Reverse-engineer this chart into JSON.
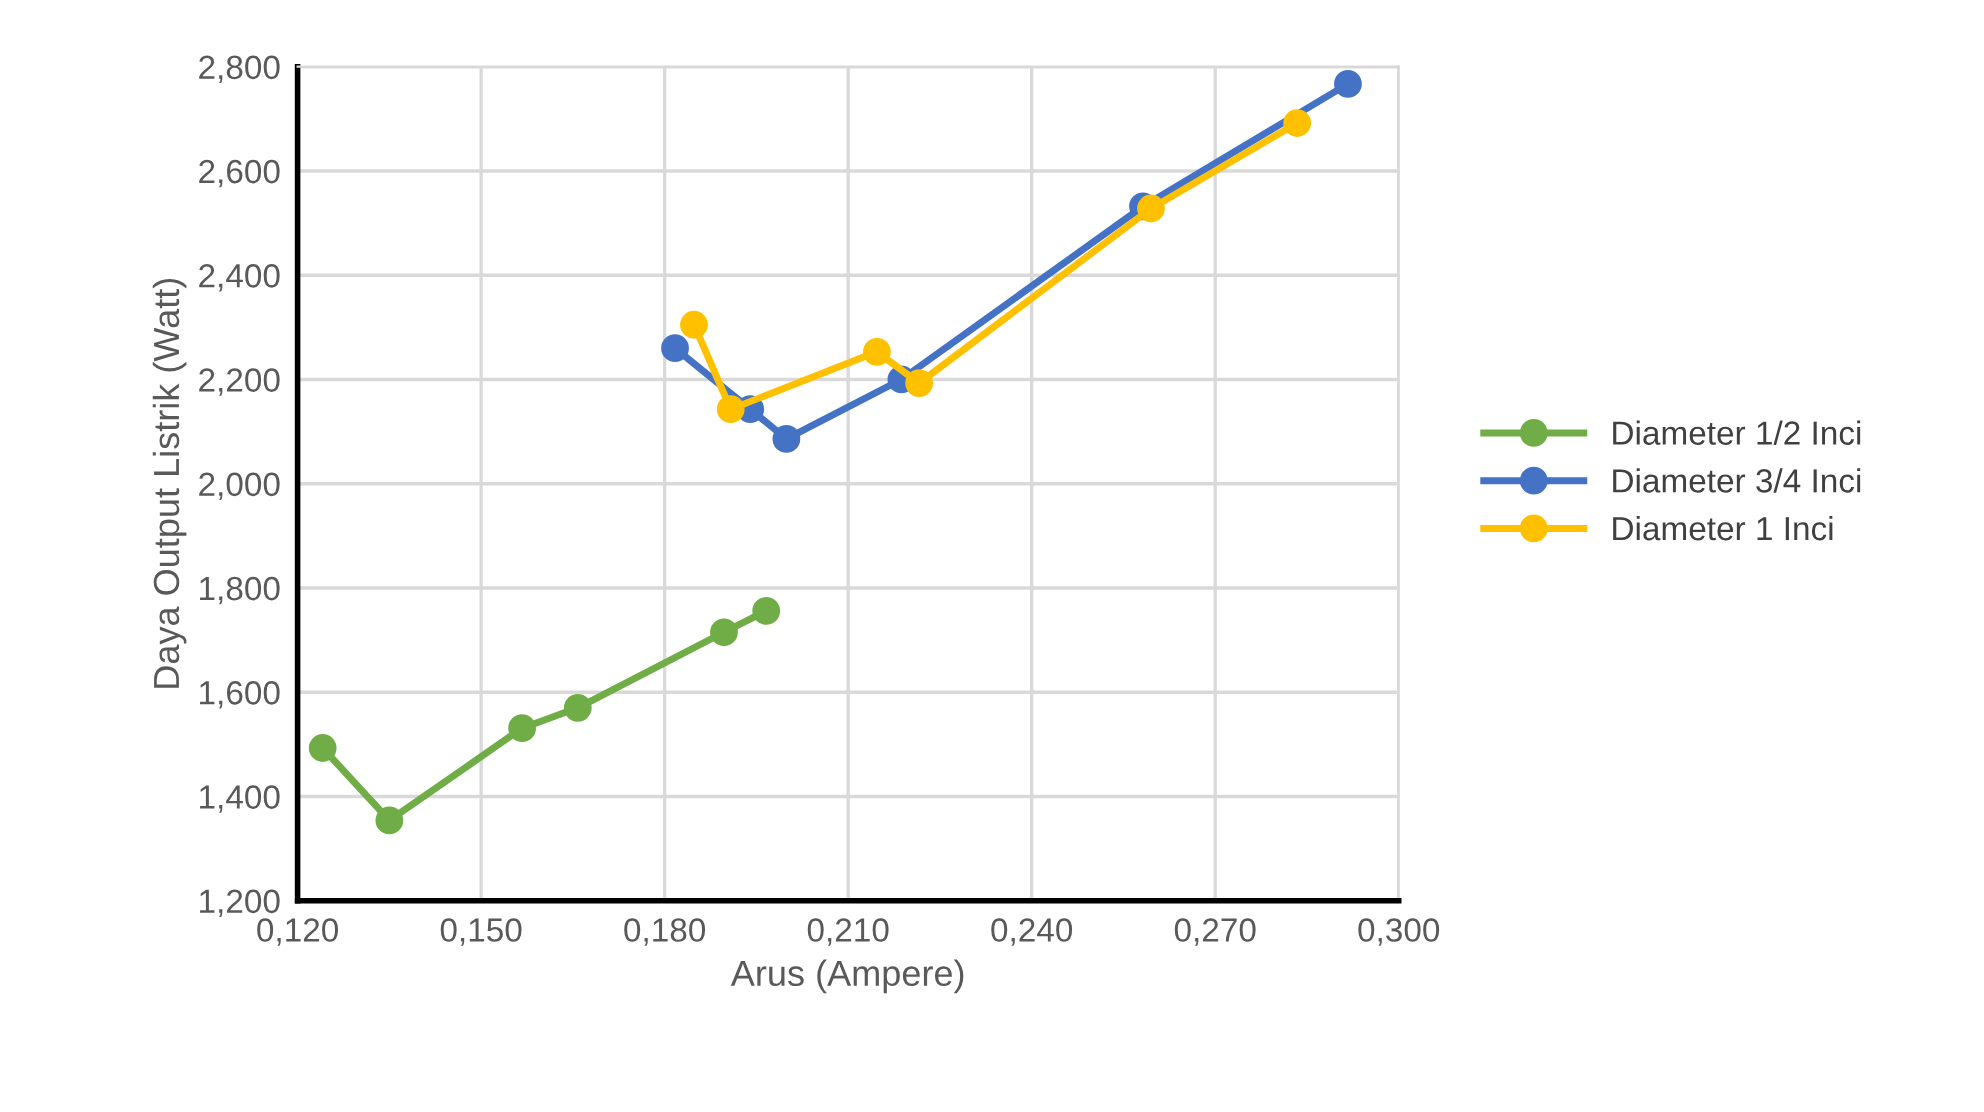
{
  "chart_data": {
    "type": "line",
    "xlabel": "Arus (Ampere)",
    "ylabel": "Daya Output Listrik (Watt)",
    "xlim": [
      0.12,
      0.3
    ],
    "xticks": [
      {
        "value": 0.12,
        "label": "0,120"
      },
      {
        "value": 0.15,
        "label": "0,150"
      },
      {
        "value": 0.18,
        "label": "0,180"
      },
      {
        "value": 0.21,
        "label": "0,210"
      },
      {
        "value": 0.24,
        "label": "0,240"
      },
      {
        "value": 0.27,
        "label": "0,270"
      },
      {
        "value": 0.3,
        "label": "0,300"
      }
    ],
    "ylim": [
      1.2,
      2.8
    ],
    "yticks": [
      {
        "value": 1.2,
        "label": "1,200"
      },
      {
        "value": 1.4,
        "label": "1,400"
      },
      {
        "value": 1.6,
        "label": "1,600"
      },
      {
        "value": 1.8,
        "label": "1,800"
      },
      {
        "value": 2.0,
        "label": "2,000"
      },
      {
        "value": 2.2,
        "label": "2,200"
      },
      {
        "value": 2.4,
        "label": "2,400"
      },
      {
        "value": 2.6,
        "label": "2,600"
      },
      {
        "value": 2.8,
        "label": "2,800"
      }
    ],
    "grid": true,
    "legend": "right",
    "marker": "circle",
    "line_style": "solid",
    "series": [
      {
        "name": "Diameter 1/2 Inci",
        "color": "#70ad47",
        "x": [
          0.1241,
          0.135,
          0.1567,
          0.1658,
          0.1897,
          0.1966
        ],
        "values": [
          1.493,
          1.354,
          1.531,
          1.57,
          1.715,
          1.756
        ]
      },
      {
        "name": "Diameter 3/4 Inci",
        "color": "#4472c4",
        "x": [
          0.1817,
          0.194,
          0.1999,
          0.2187,
          0.2582,
          0.2917
        ],
        "values": [
          2.26,
          2.143,
          2.086,
          2.2,
          2.532,
          2.767
        ]
      },
      {
        "name": "Diameter 1 Inci",
        "color": "#ffc000",
        "x": [
          0.1848,
          0.1908,
          0.2147,
          0.2216,
          0.2595,
          0.2834
        ],
        "values": [
          2.305,
          2.143,
          2.253,
          2.193,
          2.528,
          2.692
        ]
      }
    ]
  }
}
